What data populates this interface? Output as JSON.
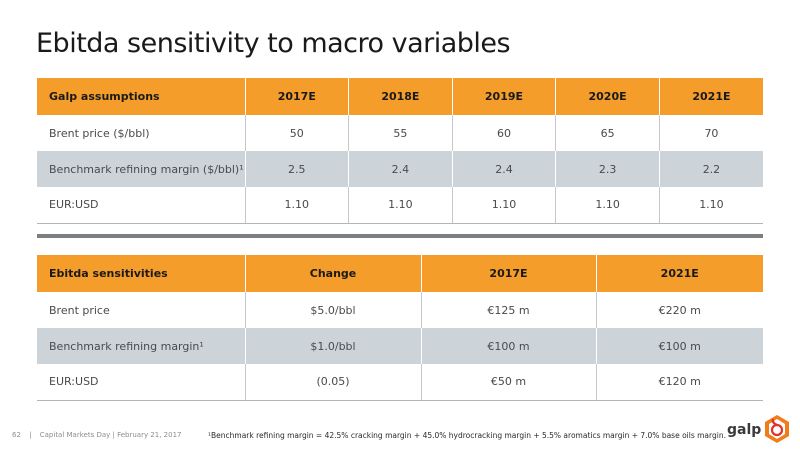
{
  "title": "Ebitda sensitivity to macro variables",
  "assumptions": {
    "headers": [
      "Galp assumptions",
      "2017E",
      "2018E",
      "2019E",
      "2020E",
      "2021E"
    ],
    "rows": [
      {
        "label": "Brent price ($/bbl)",
        "values": [
          "50",
          "55",
          "60",
          "65",
          "70"
        ]
      },
      {
        "label": "Benchmark refining margin ($/bbl)¹",
        "values": [
          "2.5",
          "2.4",
          "2.4",
          "2.3",
          "2.2"
        ]
      },
      {
        "label": "EUR:USD",
        "values": [
          "1.10",
          "1.10",
          "1.10",
          "1.10",
          "1.10"
        ]
      }
    ]
  },
  "sensitivities": {
    "headers": [
      "Ebitda sensitivities",
      "Change",
      "2017E",
      "2021E"
    ],
    "rows": [
      {
        "label": "Brent price",
        "values": [
          "$5.0/bbl",
          "€125 m",
          "€220 m"
        ]
      },
      {
        "label": "Benchmark refining margin¹",
        "values": [
          "$1.0/bbl",
          "€100 m",
          "€100 m"
        ]
      },
      {
        "label": "EUR:USD",
        "values": [
          "(0.05)",
          "€50 m",
          "€120 m"
        ]
      }
    ]
  },
  "footer": {
    "page": "62",
    "separator": "|",
    "event": "Capital Markets Day | February 21, 2017",
    "footnote": "¹Benchmark refining margin = 42.5% cracking margin + 45.0% hydrocracking margin + 5.5% aromatics margin + 7.0% base oils margin.",
    "logo": "galp"
  },
  "colors": {
    "header_orange": "#f59d2a",
    "row_gray": "#ccd4d9",
    "divider": "#7b7f82"
  }
}
